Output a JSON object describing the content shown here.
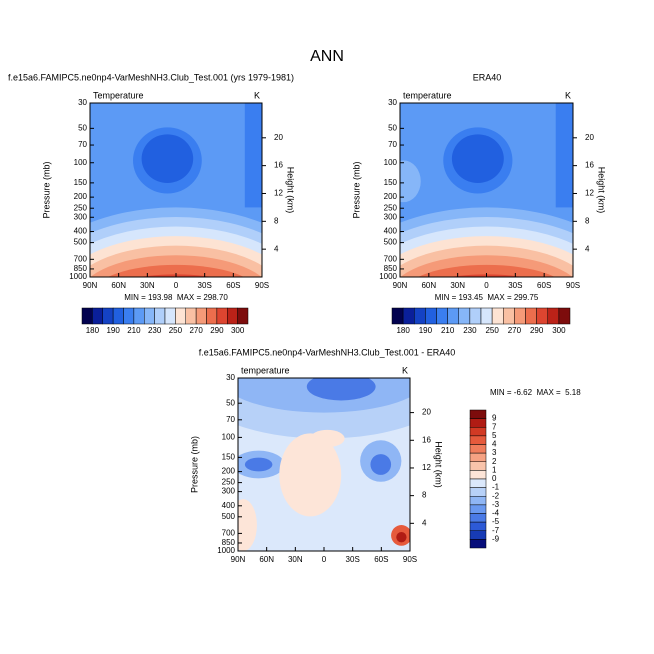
{
  "title": "ANN",
  "chart_data": [
    {
      "type": "contour",
      "title": "f.e15a6.FAMIPC5.ne0np4-VarMeshNH3.Club_Test.001 (yrs 1979-1981)",
      "left_label": "Temperature",
      "right_label": "K",
      "ylabel": "Pressure (mb)",
      "y2label": "Height (km)",
      "xlim": [
        90,
        -90
      ],
      "xticks": [
        {
          "value": 90,
          "label": "90N"
        },
        {
          "value": 60,
          "label": "60N"
        },
        {
          "value": 30,
          "label": "30N"
        },
        0,
        {
          "value": -30,
          "label": "30S"
        },
        {
          "value": -60,
          "label": "60S"
        },
        {
          "value": -90,
          "label": "90S"
        }
      ],
      "ylim": [
        1000,
        30
      ],
      "yscale": "log",
      "yticks": [
        30,
        50,
        70,
        100,
        150,
        200,
        250,
        300,
        400,
        500,
        700,
        850,
        1000
      ],
      "y2lim": [
        0,
        25
      ],
      "y2ticks": [
        4,
        8,
        12,
        16,
        20
      ],
      "annotation": "MIN = 193.98  MAX = 298.70",
      "colorbar": {
        "orientation": "horizontal",
        "colors": [
          "#02024f",
          "#0a1f9a",
          "#1442c4",
          "#2160e0",
          "#3a7ef0",
          "#5c9af5",
          "#86b6f8",
          "#b0cffa",
          "#d6e6fc",
          "#fde3d3",
          "#f9c0a3",
          "#f59a78",
          "#ec6e4d",
          "#dd4530",
          "#bb2218",
          "#7d0c0c"
        ],
        "ticks": [
          180,
          190,
          210,
          230,
          250,
          270,
          290,
          300
        ]
      }
    },
    {
      "type": "contour",
      "title": "ERA40",
      "left_label": "temperature",
      "right_label": "K",
      "ylabel": "Pressure (mb)",
      "y2label": "Height (km)",
      "xlim": [
        90,
        -90
      ],
      "xticks": [
        {
          "value": 90,
          "label": "90N"
        },
        {
          "value": 60,
          "label": "60N"
        },
        {
          "value": 30,
          "label": "30N"
        },
        0,
        {
          "value": -30,
          "label": "30S"
        },
        {
          "value": -60,
          "label": "60S"
        },
        {
          "value": -90,
          "label": "90S"
        }
      ],
      "ylim": [
        1000,
        30
      ],
      "yscale": "log",
      "yticks": [
        30,
        50,
        70,
        100,
        150,
        200,
        250,
        300,
        400,
        500,
        700,
        850,
        1000
      ],
      "y2lim": [
        0,
        25
      ],
      "y2ticks": [
        4,
        8,
        12,
        16,
        20
      ],
      "annotation": "MIN = 193.45  MAX = 299.75",
      "colorbar": {
        "orientation": "horizontal",
        "colors": [
          "#02024f",
          "#0a1f9a",
          "#1442c4",
          "#2160e0",
          "#3a7ef0",
          "#5c9af5",
          "#86b6f8",
          "#b0cffa",
          "#d6e6fc",
          "#fde3d3",
          "#f9c0a3",
          "#f59a78",
          "#ec6e4d",
          "#dd4530",
          "#bb2218",
          "#7d0c0c"
        ],
        "ticks": [
          180,
          190,
          210,
          230,
          250,
          270,
          290,
          300
        ]
      }
    },
    {
      "type": "contour",
      "title": "f.e15a6.FAMIPC5.ne0np4-VarMeshNH3.Club_Test.001 - ERA40",
      "left_label": "temperature",
      "right_label": "K",
      "ylabel": "Pressure (mb)",
      "y2label": "Height (km)",
      "xlim": [
        90,
        -90
      ],
      "xticks": [
        {
          "value": 90,
          "label": "90N"
        },
        {
          "value": 60,
          "label": "60N"
        },
        {
          "value": 30,
          "label": "30N"
        },
        0,
        {
          "value": -30,
          "label": "30S"
        },
        {
          "value": -60,
          "label": "60S"
        },
        {
          "value": -90,
          "label": "90S"
        }
      ],
      "ylim": [
        1000,
        30
      ],
      "yscale": "log",
      "yticks": [
        30,
        50,
        70,
        100,
        150,
        200,
        250,
        300,
        400,
        500,
        700,
        850,
        1000
      ],
      "y2lim": [
        0,
        25
      ],
      "y2ticks": [
        4,
        8,
        12,
        16,
        20
      ],
      "annotation": "MIN = -6.62  MAX =  5.18",
      "colorbar": {
        "orientation": "vertical",
        "colors": [
          "#7d0c0c",
          "#b01c14",
          "#d23a24",
          "#e65a3c",
          "#f07d5c",
          "#f6a283",
          "#f9c4ab",
          "#fde5d8",
          "#dbe8fb",
          "#b7d1f8",
          "#8fb6f5",
          "#6a99f0",
          "#4a7ae6",
          "#2d5ad6",
          "#173bb5",
          "#060d7a"
        ],
        "ticks": [
          9,
          7,
          5,
          4,
          3,
          2,
          1,
          0,
          -1,
          -2,
          -3,
          -4,
          -5,
          -7,
          -9
        ]
      }
    }
  ]
}
